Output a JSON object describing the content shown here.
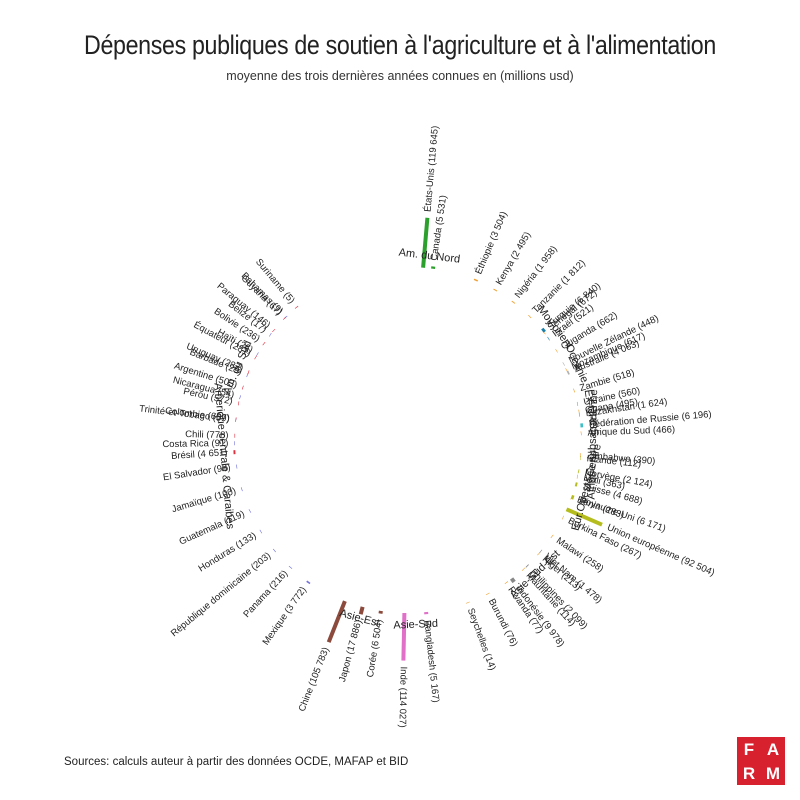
{
  "title": "Dépenses publiques de soutien à l'agriculture et à l'alimentation",
  "subtitle": "moyenne des trois dernières années connues en (millions usd)",
  "source": "Sources: calculs auteur à partir des données OCDE, MAFAP et BID",
  "logo": {
    "letters": [
      "F",
      "A",
      "R",
      "M"
    ],
    "color": "#d8212f"
  },
  "chart_data": {
    "type": "bar",
    "layout": "circular grouped bar chart",
    "unit": "millions usd",
    "groups": [
      {
        "name": "Am. du Nord",
        "color": "#2ca02c",
        "items": [
          {
            "label": "États-Unis (119 645)",
            "country": "États-Unis",
            "value": 119645
          },
          {
            "label": "Canada (5 531)",
            "country": "Canada",
            "value": 5531
          }
        ]
      },
      {
        "name": "Afrique subsaharienne",
        "color": "#f0a030",
        "items": [
          {
            "label": "Éthiopie (3 504)",
            "country": "Éthiopie",
            "value": 3504
          },
          {
            "label": "Kenya (2 495)",
            "country": "Kenya",
            "value": 2495
          },
          {
            "label": "Nigéria (1 958)",
            "country": "Nigéria",
            "value": 1958
          },
          {
            "label": "Tanzanie (1 812)",
            "country": "Tanzanie",
            "value": 1812
          },
          {
            "label": "Sénégal (672)",
            "country": "Sénégal",
            "value": 672
          },
          {
            "label": "Ouganda (662)",
            "country": "Ouganda",
            "value": 662
          },
          {
            "label": "Mozambique (617)",
            "country": "Mozambique",
            "value": 617
          },
          {
            "label": "Zambie (518)",
            "country": "Zambie",
            "value": 518
          },
          {
            "label": "Ghana (495)",
            "country": "Ghana",
            "value": 495
          },
          {
            "label": "Afrique du Sud (466)",
            "country": "Afrique du Sud",
            "value": 466
          },
          {
            "label": "Zimbabwe (390)",
            "country": "Zimbabwe",
            "value": 390
          },
          {
            "label": "Mali (363)",
            "country": "Mali",
            "value": 363
          },
          {
            "label": "Bénin (283)",
            "country": "Bénin",
            "value": 283
          },
          {
            "label": "Burkina Faso (267)",
            "country": "Burkina Faso",
            "value": 267
          },
          {
            "label": "Malawi (258)",
            "country": "Malawi",
            "value": 258
          },
          {
            "label": "Niger (213)",
            "country": "Niger",
            "value": 213
          },
          {
            "label": "Mauritanie (114)",
            "country": "Mauritanie",
            "value": 114
          },
          {
            "label": "Rwanda (77)",
            "country": "Rwanda",
            "value": 77
          },
          {
            "label": "Burundi (76)",
            "country": "Burundi",
            "value": 76
          },
          {
            "label": "Seychelles (14)",
            "country": "Seychelles",
            "value": 14
          }
        ]
      },
      {
        "name": "Moy.orient",
        "color": "#1a7fa8",
        "items": [
          {
            "label": "Turquie (6 840)",
            "country": "Turquie",
            "value": 6840
          },
          {
            "label": "Israël (521)",
            "country": "Israël",
            "value": 521
          }
        ]
      },
      {
        "name": "Oceanie",
        "color": "#b0b0b0",
        "items": [
          {
            "label": "Nouvelle Zélande (448)",
            "country": "Nouvelle Zélande",
            "value": 448
          },
          {
            "label": "Australie (4 063)",
            "country": "Australie",
            "value": 4063
          }
        ]
      },
      {
        "name": "Ex-URSS",
        "color": "#3cc0c8",
        "items": [
          {
            "label": "Ukraine (560)",
            "country": "Ukraine",
            "value": 560
          },
          {
            "label": "Kazakhstan (1 624)",
            "country": "Kazakhstan",
            "value": 1624
          },
          {
            "label": "Fédération de Russie (6 196)",
            "country": "Fédération de Russie",
            "value": 6196
          }
        ]
      },
      {
        "name": "Eur.Ouest&Centre",
        "color": "#b5bd1e",
        "items": [
          {
            "label": "Islande (112)",
            "country": "Islande",
            "value": 112
          },
          {
            "label": "Norvège (2 124)",
            "country": "Norvège",
            "value": 2124
          },
          {
            "label": "Suisse (4 688)",
            "country": "Suisse",
            "value": 4688
          },
          {
            "label": "Royaume-Uni (6 171)",
            "country": "Royaume-Uni",
            "value": 6171
          },
          {
            "label": "Union européenne (92 504)",
            "country": "Union européenne",
            "value": 92504
          }
        ]
      },
      {
        "name": "Asie-Sud-Est",
        "color": "#888888",
        "items": [
          {
            "label": "Viet Nam (1 478)",
            "country": "Viet Nam",
            "value": 1478
          },
          {
            "label": "Philippines (2 099)",
            "country": "Philippines",
            "value": 2099
          },
          {
            "label": "Indonésie (9 978)",
            "country": "Indonésie",
            "value": 9978
          }
        ]
      },
      {
        "name": "Asie-Sud",
        "color": "#e070c8",
        "items": [
          {
            "label": "Bangladesh (5 167)",
            "country": "Bangladesh",
            "value": 5167
          },
          {
            "label": "Inde (114 027)",
            "country": "Inde",
            "value": 114027
          }
        ]
      },
      {
        "name": "Asie-Est",
        "color": "#8b4a3c",
        "items": [
          {
            "label": "Corée (6 504)",
            "country": "Corée",
            "value": 6504
          },
          {
            "label": "Japon (17 886)",
            "country": "Japon",
            "value": 17886
          },
          {
            "label": "Chine (105 783)",
            "country": "Chine",
            "value": 105783
          }
        ]
      },
      {
        "name": "Amerique centrale & Caraibes",
        "color": "#7070d8",
        "items": [
          {
            "label": "Mexique (3 772)",
            "country": "Mexique",
            "value": 3772
          },
          {
            "label": "Panama (216)",
            "country": "Panama",
            "value": 216
          },
          {
            "label": "République dominicaine (203)",
            "country": "République dominicaine",
            "value": 203
          },
          {
            "label": "Honduras (133)",
            "country": "Honduras",
            "value": 133
          },
          {
            "label": "Guatemala (119)",
            "country": "Guatemala",
            "value": 119
          },
          {
            "label": "Jamaïque (100)",
            "country": "Jamaïque",
            "value": 100
          },
          {
            "label": "El Salvador (98)",
            "country": "El Salvador",
            "value": 98
          },
          {
            "label": "Costa Rica (91)",
            "country": "Costa Rica",
            "value": 91
          },
          {
            "label": "Trinité-et-Tobago (59)",
            "country": "Trinité-et-Tobago",
            "value": 59
          },
          {
            "label": "Nicaragua (54)",
            "country": "Nicaragua",
            "value": 54
          },
          {
            "label": "Barbade (29)",
            "country": "Barbade",
            "value": 29
          },
          {
            "label": "Haïti (26)",
            "country": "Haïti",
            "value": 26
          },
          {
            "label": "Belize (17)",
            "country": "Belize",
            "value": 17
          },
          {
            "label": "Bahamas (9)",
            "country": "Bahamas",
            "value": 9
          }
        ]
      },
      {
        "name": "Am. du Sud",
        "color": "#e03040",
        "items": [
          {
            "label": "Brésil (4 651)",
            "country": "Brésil",
            "value": 4651
          },
          {
            "label": "Chili (778)",
            "country": "Chili",
            "value": 778
          },
          {
            "label": "Colombie (607)",
            "country": "Colombie",
            "value": 607
          },
          {
            "label": "Pérou (572)",
            "country": "Pérou",
            "value": 572
          },
          {
            "label": "Argentine (503)",
            "country": "Argentine",
            "value": 503
          },
          {
            "label": "Uruguay (287)",
            "country": "Uruguay",
            "value": 287
          },
          {
            "label": "Équateur (281)",
            "country": "Équateur",
            "value": 281
          },
          {
            "label": "Bolivie (236)",
            "country": "Bolivie",
            "value": 236
          },
          {
            "label": "Paraguay (146)",
            "country": "Paraguay",
            "value": 146
          },
          {
            "label": "Guyana (67)",
            "country": "Guyana",
            "value": 67
          },
          {
            "label": "Suriname (5)",
            "country": "Suriname",
            "value": 5
          }
        ]
      }
    ]
  }
}
